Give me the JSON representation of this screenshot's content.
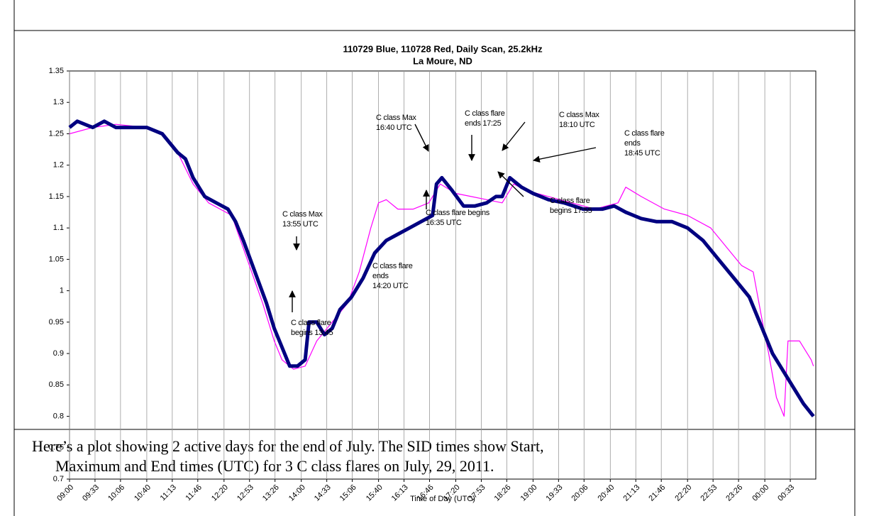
{
  "chart_data": {
    "type": "line",
    "title": [
      "110729 Blue, 110728 Red, Daily Scan, 25.2kHz",
      "La Moure, ND"
    ],
    "xlabel": "Time of Day (UTC)",
    "xlim": [
      0,
      966
    ],
    "xticks": [
      {
        "value": 0,
        "label": "09:00"
      },
      {
        "value": 33,
        "label": "09:33"
      },
      {
        "value": 66,
        "label": "10:06"
      },
      {
        "value": 100,
        "label": "10:40"
      },
      {
        "value": 133,
        "label": "11:13"
      },
      {
        "value": 166,
        "label": "11:46"
      },
      {
        "value": 200,
        "label": "12:20"
      },
      {
        "value": 233,
        "label": "12:53"
      },
      {
        "value": 266,
        "label": "13:26"
      },
      {
        "value": 300,
        "label": "14:00"
      },
      {
        "value": 333,
        "label": "14:33"
      },
      {
        "value": 366,
        "label": "15:06"
      },
      {
        "value": 400,
        "label": "15:40"
      },
      {
        "value": 433,
        "label": "16:13"
      },
      {
        "value": 466,
        "label": "16:46"
      },
      {
        "value": 500,
        "label": "17:20"
      },
      {
        "value": 533,
        "label": "17:53"
      },
      {
        "value": 566,
        "label": "18:26"
      },
      {
        "value": 600,
        "label": "19:00"
      },
      {
        "value": 633,
        "label": "19:33"
      },
      {
        "value": 666,
        "label": "20:06"
      },
      {
        "value": 700,
        "label": "20:40"
      },
      {
        "value": 733,
        "label": "21:13"
      },
      {
        "value": 766,
        "label": "21:46"
      },
      {
        "value": 800,
        "label": "22:20"
      },
      {
        "value": 833,
        "label": "22:53"
      },
      {
        "value": 866,
        "label": "23:26"
      },
      {
        "value": 900,
        "label": "00:00"
      },
      {
        "value": 933,
        "label": "00:33"
      }
    ],
    "ylim": [
      0.7,
      1.35
    ],
    "yticks": [
      0.7,
      0.75,
      0.8,
      0.85,
      0.9,
      0.95,
      1,
      1.05,
      1.1,
      1.15,
      1.2,
      1.25,
      1.3,
      1.35
    ],
    "grid": true,
    "series": [
      {
        "color": "#ff00ff",
        "width": 1.2,
        "x": [
          0,
          30,
          60,
          100,
          120,
          140,
          160,
          180,
          210,
          230,
          250,
          265,
          275,
          290,
          305,
          320,
          340,
          360,
          375,
          390,
          400,
          410,
          425,
          445,
          465,
          480,
          500,
          520,
          540,
          560,
          575,
          590,
          620,
          650,
          680,
          710,
          720,
          740,
          770,
          800,
          830,
          850,
          870,
          885,
          900,
          905,
          915,
          925,
          930,
          945,
          960,
          963
        ],
        "values": [
          1.25,
          1.26,
          1.265,
          1.26,
          1.25,
          1.22,
          1.17,
          1.14,
          1.12,
          1.05,
          0.98,
          0.92,
          0.89,
          0.875,
          0.88,
          0.92,
          0.95,
          0.98,
          1.03,
          1.1,
          1.14,
          1.145,
          1.13,
          1.13,
          1.14,
          1.17,
          1.155,
          1.15,
          1.145,
          1.14,
          1.17,
          1.16,
          1.15,
          1.14,
          1.13,
          1.14,
          1.165,
          1.15,
          1.13,
          1.12,
          1.1,
          1.07,
          1.04,
          1.03,
          0.93,
          0.9,
          0.83,
          0.8,
          0.92,
          0.92,
          0.89,
          0.88
        ]
      },
      {
        "color": "#000080",
        "width": 5,
        "x": [
          0,
          10,
          30,
          45,
          60,
          80,
          100,
          120,
          140,
          150,
          160,
          175,
          190,
          205,
          215,
          225,
          240,
          255,
          265,
          275,
          285,
          295,
          305,
          310,
          320,
          330,
          340,
          350,
          365,
          380,
          395,
          410,
          425,
          440,
          455,
          470,
          475,
          482,
          495,
          510,
          525,
          540,
          552,
          560,
          570,
          585,
          600,
          620,
          640,
          665,
          690,
          705,
          720,
          740,
          760,
          780,
          800,
          820,
          840,
          860,
          880,
          890,
          900,
          910,
          920,
          935,
          950,
          963
        ],
        "values": [
          1.26,
          1.27,
          1.26,
          1.27,
          1.26,
          1.26,
          1.26,
          1.25,
          1.22,
          1.21,
          1.18,
          1.15,
          1.14,
          1.13,
          1.11,
          1.08,
          1.03,
          0.98,
          0.94,
          0.91,
          0.88,
          0.88,
          0.89,
          0.95,
          0.95,
          0.93,
          0.94,
          0.97,
          0.99,
          1.02,
          1.06,
          1.08,
          1.09,
          1.1,
          1.11,
          1.12,
          1.17,
          1.18,
          1.16,
          1.135,
          1.135,
          1.14,
          1.15,
          1.15,
          1.18,
          1.165,
          1.155,
          1.145,
          1.14,
          1.13,
          1.13,
          1.135,
          1.125,
          1.115,
          1.11,
          1.11,
          1.1,
          1.08,
          1.05,
          1.02,
          0.99,
          0.96,
          0.93,
          0.9,
          0.88,
          0.85,
          0.82,
          0.8
        ]
      }
    ],
    "annotations": [
      [
        "C class Max",
        "13:55 UTC"
      ],
      [
        "C class flare",
        "begins 13:45"
      ],
      [
        "C class flare",
        "ends",
        "14:20 UTC"
      ],
      [
        "C class Max",
        "16:40 UTC"
      ],
      [
        "C class flare",
        "ends 17:25"
      ],
      [
        "C class flare begins",
        "16:35 UTC"
      ],
      [
        "C class Max",
        "18:10 UTC"
      ],
      [
        "C class flare",
        "ends",
        "18:45 UTC"
      ],
      [
        "C class flare",
        "begins 17:55"
      ]
    ]
  },
  "caption": [
    "Here’s a plot showing 2 active days for the end of July.  The SID times show Start,",
    "Maximum and End times (UTC) for 3 C class flares on July, 29, 2011."
  ]
}
